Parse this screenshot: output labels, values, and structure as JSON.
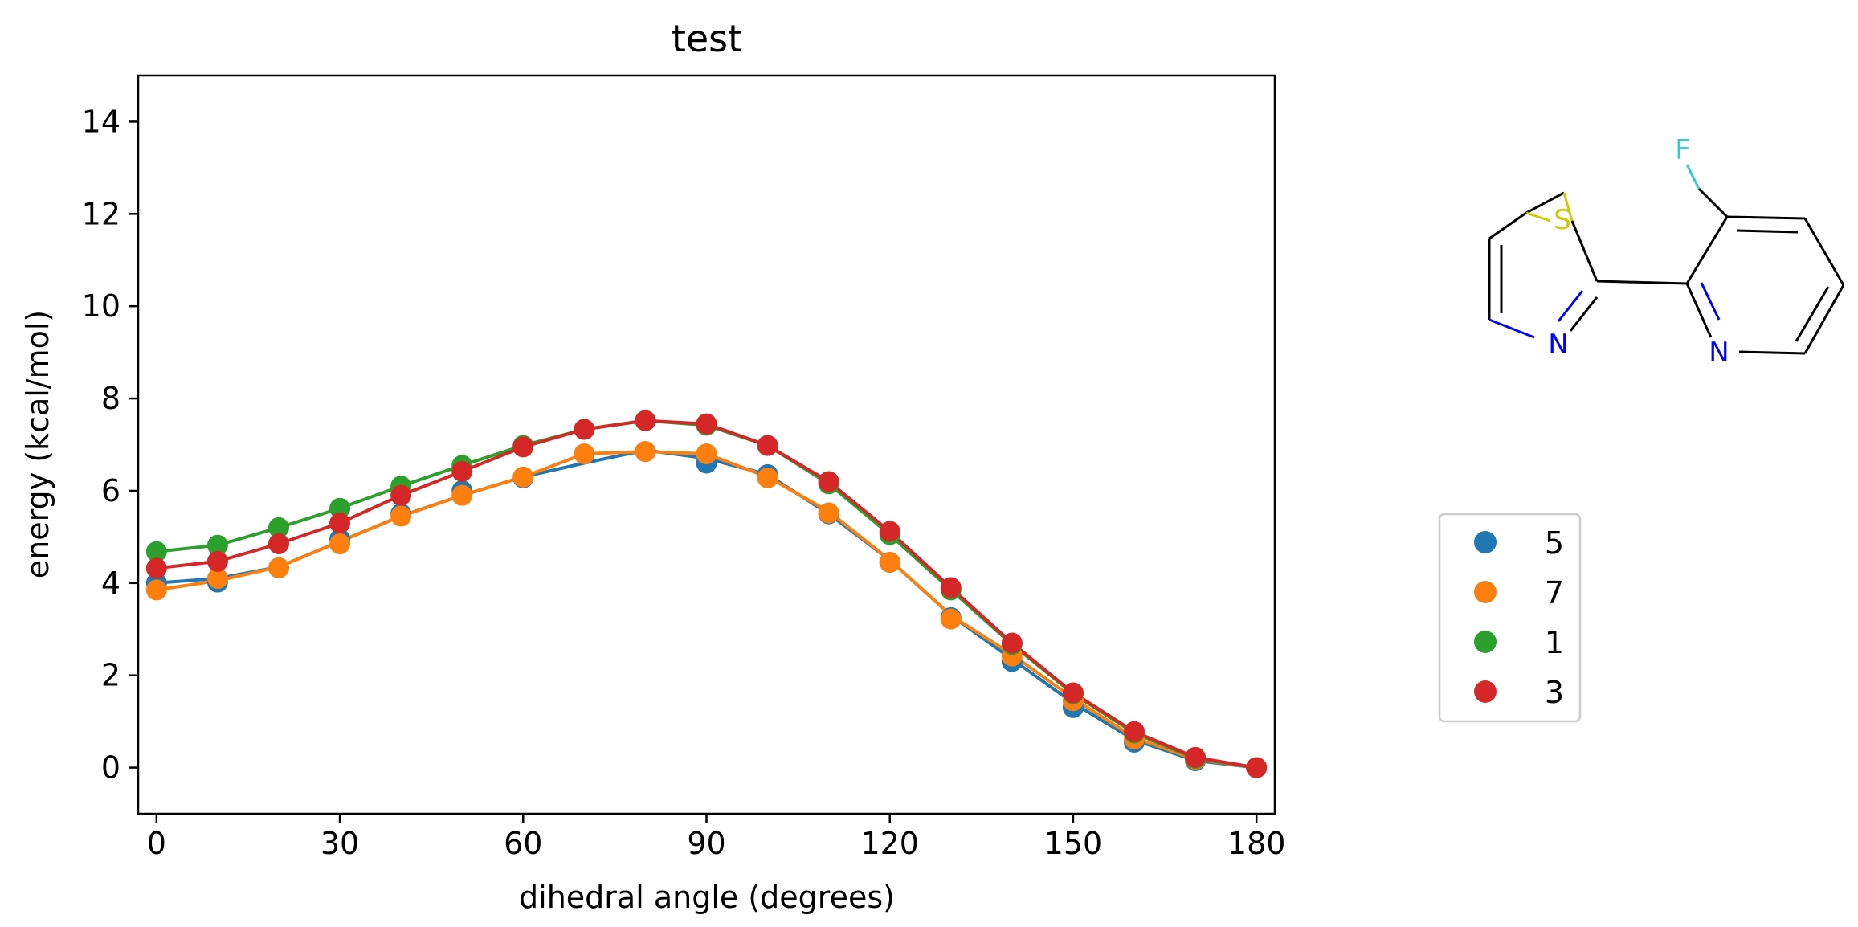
{
  "chart_data": {
    "type": "line",
    "title": "test",
    "xlabel": "dihedral angle (degrees)",
    "ylabel": "energy (kcal/mol)",
    "xlim": [
      -3,
      183
    ],
    "ylim": [
      -1,
      15
    ],
    "xticks": [
      0,
      30,
      60,
      90,
      120,
      150,
      180
    ],
    "yticks": [
      0,
      2,
      4,
      6,
      8,
      10,
      12,
      14
    ],
    "grid": false,
    "legend_position": "right",
    "x": [
      0,
      10,
      20,
      30,
      40,
      50,
      60,
      70,
      80,
      90,
      100,
      110,
      120,
      130,
      140,
      150,
      160,
      170,
      180
    ],
    "series": [
      {
        "name": "5",
        "color": "#1f77b4",
        "points": [
          4.0,
          4.02,
          4.33,
          4.95,
          5.5,
          6.0,
          6.28,
          null,
          6.85,
          6.6,
          6.35,
          5.5,
          4.45,
          3.25,
          2.3,
          1.3,
          0.55,
          0.15,
          0.0
        ],
        "line": [
          4.0,
          4.1,
          4.35,
          4.9,
          5.45,
          5.9,
          6.3,
          6.6,
          6.88,
          6.7,
          6.35,
          5.5,
          4.5,
          3.3,
          2.35,
          1.4,
          0.6,
          0.15,
          0.0
        ]
      },
      {
        "name": "7",
        "color": "#ff7f0e",
        "points": [
          3.85,
          4.1,
          4.33,
          4.85,
          5.45,
          5.9,
          6.3,
          6.8,
          6.85,
          6.8,
          6.28,
          5.52,
          4.45,
          3.22,
          2.42,
          1.45,
          0.62,
          0.18,
          0.0
        ],
        "line": [
          3.85,
          4.05,
          4.35,
          4.9,
          5.45,
          5.9,
          6.3,
          6.8,
          6.85,
          6.8,
          6.3,
          5.55,
          4.5,
          3.3,
          2.45,
          1.5,
          0.65,
          0.18,
          0.0
        ]
      },
      {
        "name": "1",
        "color": "#2ca02c",
        "points": [
          4.68,
          4.82,
          5.2,
          5.62,
          6.1,
          6.55,
          6.98,
          7.33,
          7.52,
          7.42,
          6.98,
          6.15,
          5.05,
          3.85,
          2.67,
          1.6,
          0.75,
          0.2,
          0.0
        ],
        "line": [
          4.68,
          4.82,
          5.2,
          5.62,
          6.1,
          6.55,
          6.98,
          7.33,
          7.52,
          7.42,
          6.98,
          6.15,
          5.05,
          3.85,
          2.67,
          1.6,
          0.75,
          0.2,
          0.0
        ]
      },
      {
        "name": "3",
        "color": "#d62728",
        "points": [
          4.32,
          4.47,
          4.85,
          5.3,
          5.9,
          6.42,
          6.95,
          7.33,
          7.52,
          7.45,
          6.98,
          6.2,
          5.12,
          3.9,
          2.7,
          1.62,
          0.78,
          0.22,
          0.0
        ],
        "line": [
          4.32,
          4.47,
          4.85,
          5.3,
          5.9,
          6.42,
          6.95,
          7.33,
          7.52,
          7.45,
          6.98,
          6.2,
          5.12,
          3.9,
          2.7,
          1.62,
          0.78,
          0.22,
          0.0
        ]
      }
    ]
  },
  "molecule": {
    "atom_labels": [
      "S",
      "N",
      "F",
      "N"
    ],
    "colors": {
      "bond": "#000000",
      "S": "#cccc00",
      "N": "#0000ff",
      "F": "#33cccc"
    }
  }
}
